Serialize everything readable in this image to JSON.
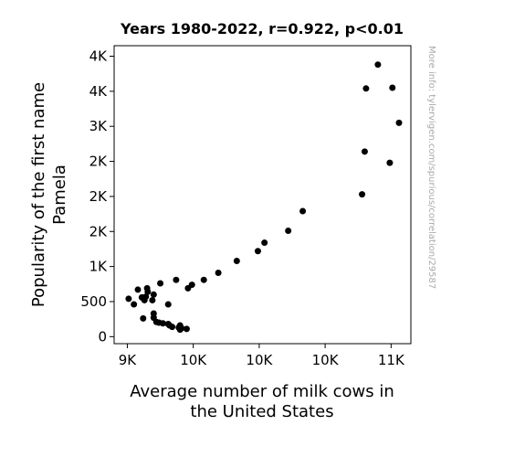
{
  "chart_data": {
    "type": "scatter",
    "title": "Years 1980-2022, r=0.922, p<0.01",
    "xlabel": [
      "Average number of milk cows in",
      "the United States"
    ],
    "ylabel": [
      "Popularity of the first name",
      "Pamela"
    ],
    "watermark": "More info: tylervigen.com/spurious/correlation/29587",
    "xlim": [
      8900,
      11150
    ],
    "ylim": [
      -100,
      4150
    ],
    "x_ticks": [
      {
        "value": 9000,
        "label": "9K"
      },
      {
        "value": 9500,
        "label": "10K"
      },
      {
        "value": 10000,
        "label": "10K"
      },
      {
        "value": 10500,
        "label": "10K"
      },
      {
        "value": 11000,
        "label": "11K"
      }
    ],
    "y_ticks": [
      {
        "value": 0,
        "label": "0"
      },
      {
        "value": 500,
        "label": "500"
      },
      {
        "value": 1000,
        "label": "1K"
      },
      {
        "value": 1500,
        "label": "2K"
      },
      {
        "value": 2000,
        "label": "2K"
      },
      {
        "value": 2500,
        "label": "2K"
      },
      {
        "value": 3000,
        "label": "3K"
      },
      {
        "value": 3500,
        "label": "4K"
      },
      {
        "value": 4000,
        "label": "4K"
      }
    ],
    "point_color": "#000000",
    "points": [
      {
        "x": 9010,
        "y": 540
      },
      {
        "x": 9050,
        "y": 460
      },
      {
        "x": 9080,
        "y": 670
      },
      {
        "x": 9110,
        "y": 560
      },
      {
        "x": 9120,
        "y": 260
      },
      {
        "x": 9130,
        "y": 520
      },
      {
        "x": 9140,
        "y": 570
      },
      {
        "x": 9150,
        "y": 690
      },
      {
        "x": 9155,
        "y": 640
      },
      {
        "x": 9190,
        "y": 520
      },
      {
        "x": 9200,
        "y": 600
      },
      {
        "x": 9200,
        "y": 330
      },
      {
        "x": 9200,
        "y": 270
      },
      {
        "x": 9220,
        "y": 210
      },
      {
        "x": 9240,
        "y": 200
      },
      {
        "x": 9250,
        "y": 760
      },
      {
        "x": 9270,
        "y": 190
      },
      {
        "x": 9310,
        "y": 460
      },
      {
        "x": 9310,
        "y": 180
      },
      {
        "x": 9320,
        "y": 160
      },
      {
        "x": 9340,
        "y": 140
      },
      {
        "x": 9370,
        "y": 810
      },
      {
        "x": 9390,
        "y": 130
      },
      {
        "x": 9400,
        "y": 160
      },
      {
        "x": 9400,
        "y": 100
      },
      {
        "x": 9410,
        "y": 120
      },
      {
        "x": 9450,
        "y": 110
      },
      {
        "x": 9460,
        "y": 690
      },
      {
        "x": 9490,
        "y": 740
      },
      {
        "x": 9580,
        "y": 810
      },
      {
        "x": 9690,
        "y": 910
      },
      {
        "x": 9830,
        "y": 1080
      },
      {
        "x": 9990,
        "y": 1220
      },
      {
        "x": 10040,
        "y": 1340
      },
      {
        "x": 10220,
        "y": 1510
      },
      {
        "x": 10330,
        "y": 1790
      },
      {
        "x": 10780,
        "y": 2030
      },
      {
        "x": 10800,
        "y": 2640
      },
      {
        "x": 10810,
        "y": 3540
      },
      {
        "x": 10900,
        "y": 3880
      },
      {
        "x": 10990,
        "y": 2480
      },
      {
        "x": 11010,
        "y": 3550
      },
      {
        "x": 11060,
        "y": 3050
      }
    ]
  }
}
